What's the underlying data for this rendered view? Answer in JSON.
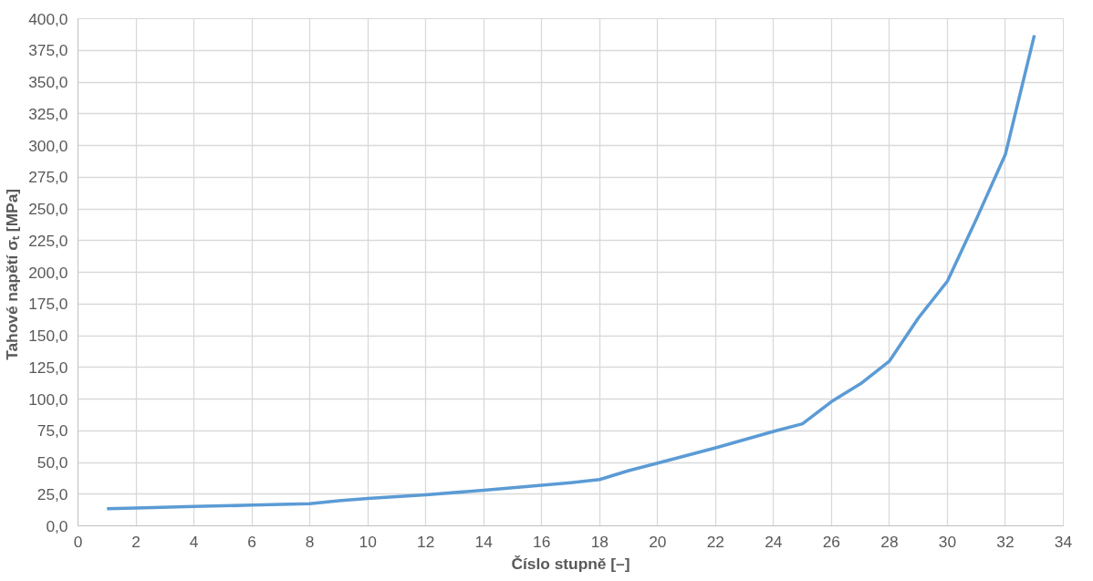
{
  "chart_data": {
    "type": "line",
    "xlabel": "Číslo stupně [–]",
    "ylabel": "Tahové napětí σₜ  [MPa]",
    "x": [
      1,
      2,
      4,
      6,
      8,
      9,
      10,
      12,
      14,
      16,
      17,
      18,
      19,
      20,
      22,
      24,
      25,
      26,
      27,
      28,
      29,
      30,
      31,
      32,
      33
    ],
    "series": [
      {
        "color": "#5b9bd5",
        "values": [
          13.5,
          14,
          15.2,
          16.3,
          17.5,
          19.8,
          21.5,
          24.5,
          28,
          32,
          34,
          36.5,
          43.5,
          49.5,
          61.5,
          74.5,
          80.5,
          98,
          112,
          130,
          164,
          193,
          242,
          293,
          387
        ]
      }
    ],
    "xlim": [
      0,
      34
    ],
    "xticks": [
      0,
      2,
      4,
      6,
      8,
      10,
      12,
      14,
      16,
      18,
      20,
      22,
      24,
      26,
      28,
      30,
      32,
      34
    ],
    "ylim": [
      0,
      400
    ],
    "yticks": [
      {
        "value": 0,
        "label": "0,0"
      },
      {
        "value": 25,
        "label": "25,0"
      },
      {
        "value": 50,
        "label": "50,0"
      },
      {
        "value": 75,
        "label": "75,0"
      },
      {
        "value": 100,
        "label": "100,0"
      },
      {
        "value": 125,
        "label": "125,0"
      },
      {
        "value": 150,
        "label": "150,0"
      },
      {
        "value": 175,
        "label": "175,0"
      },
      {
        "value": 200,
        "label": "200,0"
      },
      {
        "value": 225,
        "label": "225,0"
      },
      {
        "value": 250,
        "label": "250,0"
      },
      {
        "value": 275,
        "label": "275,0"
      },
      {
        "value": 300,
        "label": "300,0"
      },
      {
        "value": 325,
        "label": "325,0"
      },
      {
        "value": 350,
        "label": "350,0"
      },
      {
        "value": 375,
        "label": "375,0"
      },
      {
        "value": 400,
        "label": "400,0"
      }
    ],
    "grid": true,
    "marker": "none",
    "line_style": "solid"
  }
}
